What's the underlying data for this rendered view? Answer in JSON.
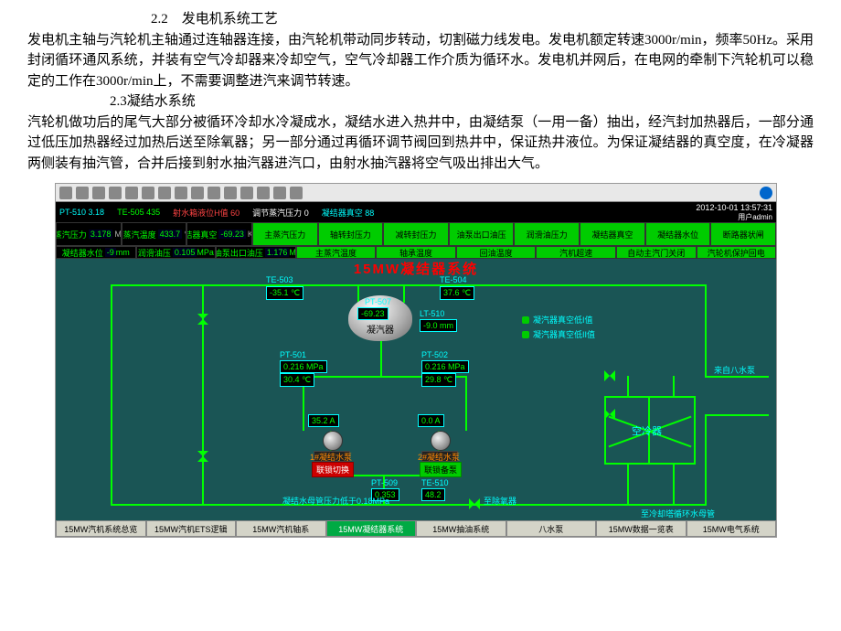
{
  "doc": {
    "section22_title": "2.2　发电机系统工艺",
    "section22_body": "发电机主轴与汽轮机主轴通过连轴器连接，由汽轮机带动同步转动，切割磁力线发电。发电机额定转速3000r/min，频率50Hz。采用封闭循环通风系统，并装有空气冷却器来冷却空气，空气冷却器工作介质为循环水。发电机并网后，在电网的牵制下汽轮机可以稳定的工作在3000r/min上，不需要调整进汽来调节转速。",
    "section23_title": "2.3凝结水系统",
    "section23_body": "汽轮机做功后的尾气大部分被循环冷却水冷凝成水，凝结水进入热井中，由凝结泵（一用一备）抽出，经汽封加热器后，一部分通过低压加热器经过加热后送至除氧器；另一部分通过再循环调节阀回到热井中，保证热井液位。为保证凝结器的真空度，在冷凝器两侧装有抽汽管，合并后接到射水抽汽器进汽口，由射水抽汽器将空气吸出排出大气。"
  },
  "screenshot": {
    "title": "15MW凝结器系统",
    "datetime": "2012-10-01 13:57:31",
    "user": "用户admin",
    "statusbar": {
      "pt510": "PT-510",
      "pt510v": "3.18",
      "te505": "TE-505",
      "te505v": "435",
      "lblA": "射水箱液位H值",
      "lblAv": "60",
      "lblB": "调节蒸汽压力",
      "lblBv": "0",
      "lblC": "凝结器真空",
      "lblCv": "88"
    },
    "databar1": [
      {
        "cls": "black",
        "label": "主蒸汽压力",
        "val": "3.178",
        "unit": "MPa"
      },
      {
        "cls": "black",
        "label": "主蒸汽温度",
        "val": "433.7",
        "unit": "℃"
      },
      {
        "cls": "black",
        "label": "凝结器真空",
        "val": "-69.23",
        "unit": "KPa"
      },
      {
        "cls": "green",
        "label": "主蒸汽压力"
      },
      {
        "cls": "green",
        "label": "轴转封压力"
      },
      {
        "cls": "green",
        "label": "减转封压力"
      },
      {
        "cls": "green",
        "label": "油泵出口油压"
      },
      {
        "cls": "green",
        "label": "润滑油压力"
      },
      {
        "cls": "green",
        "label": "凝结器真空"
      },
      {
        "cls": "green",
        "label": "凝结器水位"
      },
      {
        "cls": "green",
        "label": "断路器状闸"
      }
    ],
    "databar2": [
      {
        "cls": "black",
        "label": "凝结器水位",
        "val": "-9",
        "unit": "mm"
      },
      {
        "cls": "black",
        "label": "润滑油压",
        "val": "0.105",
        "unit": "MPa"
      },
      {
        "cls": "black",
        "label": "主油泵出口油压",
        "val": "1.176",
        "unit": "MPa"
      },
      {
        "cls": "green",
        "label": "主蒸汽温度"
      },
      {
        "cls": "green",
        "label": "轴承温度"
      },
      {
        "cls": "green",
        "label": "回油温度"
      },
      {
        "cls": "green",
        "label": "汽机超速"
      },
      {
        "cls": "green",
        "label": "自动主汽门关闭"
      },
      {
        "cls": "green",
        "label": "汽轮机保护回电"
      }
    ],
    "tags": {
      "te503": {
        "name": "TE-503",
        "val": "-35.1",
        "unit": "℃"
      },
      "te504": {
        "name": "TE-504",
        "val": "37.6",
        "unit": "℃"
      },
      "pt507": {
        "name": "PT-507",
        "val": "-69.23",
        "unit": "KPa"
      },
      "lt510": {
        "name": "LT-510",
        "val": "-9.0",
        "unit": "mm"
      },
      "pt501": {
        "name": "PT-501",
        "val": "0.216",
        "unit": "MPa"
      },
      "te501": {
        "name": "TE-501",
        "val": "30.4",
        "unit": "℃"
      },
      "pt502": {
        "name": "PT-502",
        "val": "0.216",
        "unit": "MPa"
      },
      "te502": {
        "name": "TE-502",
        "val": "29.8",
        "unit": "℃"
      },
      "pt509": {
        "name": "PT-509",
        "val": "0.353",
        "unit": "MPa"
      },
      "te510": {
        "name": "TE-510",
        "val": "48.2",
        "unit": "℃"
      },
      "amp1": {
        "val": "35.2",
        "unit": "A"
      },
      "amp2": {
        "val": "0.0",
        "unit": "A"
      }
    },
    "condenser_label": "凝汽器",
    "cooler_label": "空冷器",
    "pump1_label": "1#凝结水泵",
    "pump2_label": "2#凝结水泵",
    "btn_switch": "联锁切换",
    "btn_standby": "联锁备泵",
    "indicator_hi": "凝汽器真空低I值",
    "indicator_lo": "凝汽器真空低II值",
    "from_text": "来自八水泵",
    "to_deaerator": "至除氧器",
    "to_cooling": "至冷却塔循环水母管",
    "note": "凝结水母管压力低于0.18MPa",
    "tabs": [
      "15MW汽机系统总览",
      "15MW汽机ETS逻辑",
      "15MW汽机轴系",
      "15MW凝结器系统",
      "15MW抽油系统",
      "八水泵",
      "15MW数据一览表",
      "15MW电气系统"
    ]
  }
}
